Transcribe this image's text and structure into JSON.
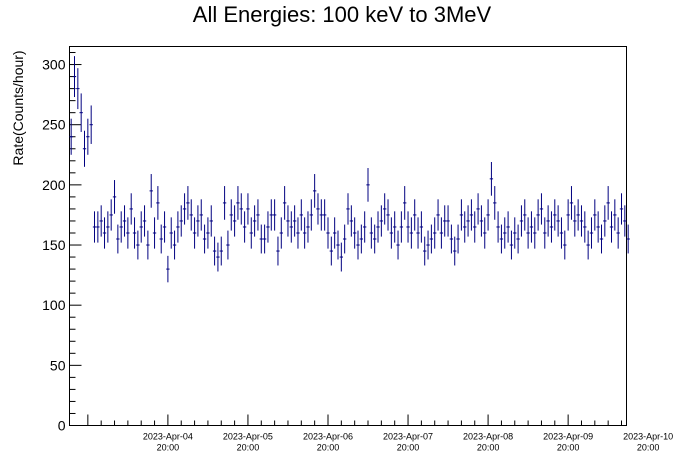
{
  "chart_data": {
    "type": "scatter",
    "title": "All Energies:  100 keV to 3MeV",
    "xlabel": "",
    "ylabel": "Rate(Counts/hour)",
    "ylim": [
      0,
      315
    ],
    "yticks": [
      0,
      50,
      100,
      150,
      200,
      250,
      300
    ],
    "xlim_hours": [
      0,
      167
    ],
    "x_start": "2023-Apr-03 14:30",
    "xtick_labels": [
      {
        "date": "2023-Apr-04",
        "time": "20:00"
      },
      {
        "date": "2023-Apr-05",
        "time": "20:00"
      },
      {
        "date": "2023-Apr-06",
        "time": "20:00"
      },
      {
        "date": "2023-Apr-07",
        "time": "20:00"
      },
      {
        "date": "2023-Apr-08",
        "time": "20:00"
      },
      {
        "date": "2023-Apr-09",
        "time": "20:00"
      },
      {
        "date": "2023-Apr-10",
        "time": "20:00"
      }
    ],
    "bin_hours": 1,
    "marker_color": "#000080",
    "grid": false,
    "series": [
      {
        "values": [
          240,
          290,
          280,
          260,
          230,
          240,
          250,
          165,
          165,
          170,
          160,
          165,
          175,
          190,
          155,
          165,
          170,
          160,
          180,
          160,
          150,
          165,
          170,
          150,
          195,
          160,
          185,
          155,
          165,
          130,
          160,
          150,
          165,
          170,
          180,
          185,
          175,
          160,
          170,
          175,
          155,
          160,
          170,
          145,
          140,
          145,
          185,
          150,
          175,
          170,
          185,
          180,
          165,
          180,
          160,
          170,
          175,
          155,
          155,
          165,
          175,
          175,
          145,
          160,
          185,
          170,
          165,
          170,
          160,
          175,
          160,
          165,
          175,
          195,
          180,
          175,
          175,
          160,
          145,
          160,
          150,
          140,
          155,
          180,
          170,
          160,
          150,
          155,
          165,
          200,
          160,
          155,
          165,
          170,
          180,
          175,
          160,
          165,
          150,
          165,
          185,
          165,
          160,
          175,
          160,
          165,
          145,
          150,
          155,
          160,
          175,
          160,
          170,
          170,
          155,
          145,
          155,
          175,
          165,
          170,
          175,
          165,
          180,
          170,
          160,
          175,
          205,
          185,
          165,
          155,
          160,
          165,
          150,
          160,
          155,
          170,
          175,
          160,
          165,
          160,
          175,
          180,
          160,
          170,
          165,
          175,
          170,
          160,
          150,
          175,
          185,
          170,
          175,
          170,
          165,
          150,
          160,
          175,
          165,
          155,
          170,
          185,
          165,
          175,
          160,
          180,
          170,
          155
        ],
        "errors": [
          15,
          17,
          17,
          16,
          15,
          15,
          16,
          13,
          13,
          13,
          13,
          13,
          13,
          14,
          12,
          13,
          13,
          13,
          13,
          13,
          12,
          13,
          13,
          12,
          14,
          13,
          14,
          12,
          13,
          11,
          13,
          12,
          13,
          13,
          13,
          14,
          13,
          13,
          13,
          13,
          12,
          13,
          13,
          12,
          12,
          12,
          14,
          12,
          13,
          13,
          14,
          13,
          13,
          13,
          13,
          13,
          13,
          12,
          12,
          13,
          13,
          13,
          12,
          13,
          14,
          13,
          13,
          13,
          13,
          13,
          13,
          13,
          13,
          14,
          13,
          13,
          13,
          13,
          12,
          13,
          12,
          12,
          12,
          13,
          13,
          13,
          12,
          12,
          13,
          14,
          13,
          12,
          13,
          13,
          13,
          13,
          13,
          13,
          12,
          13,
          14,
          13,
          13,
          13,
          13,
          13,
          12,
          12,
          12,
          13,
          13,
          13,
          13,
          13,
          12,
          12,
          12,
          13,
          13,
          13,
          13,
          13,
          13,
          13,
          13,
          13,
          14,
          14,
          13,
          12,
          13,
          13,
          12,
          13,
          12,
          13,
          13,
          13,
          13,
          13,
          13,
          13,
          13,
          13,
          13,
          13,
          13,
          13,
          12,
          13,
          14,
          13,
          13,
          13,
          13,
          12,
          13,
          13,
          13,
          12,
          13,
          14,
          13,
          13,
          13,
          13,
          13,
          12
        ]
      }
    ]
  }
}
